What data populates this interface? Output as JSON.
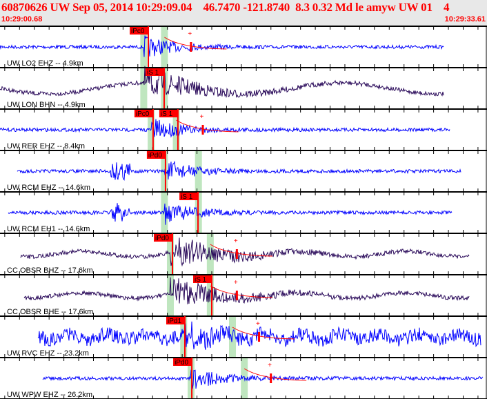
{
  "header": {
    "title": "60870626 UW Sep 05, 2014 10:29:09.04    46.7470 -121.8740  8.3 0.32 Md le amyw UW 01    4",
    "start_time": "10:29:00.68",
    "end_time": "10:29:33.61"
  },
  "colors": {
    "header_text": "#ff0000",
    "pick": "#ff0000",
    "window": "#bfe6bf",
    "short_period": "#0000ff",
    "broadband": "#2a0a5a"
  },
  "channels": [
    {
      "label": "UW LO2 EHZ -- 4.9km",
      "type": "short_period",
      "picks": [
        {
          "label": "iPc0",
          "pick_sec": 10.71
        }
      ],
      "windows_sec": [
        10.4,
        11.8
      ]
    },
    {
      "label": "UW LON BHN -- 4.9km",
      "type": "broadband",
      "picks": [
        {
          "label": "iS 1",
          "pick_sec": 11.78
        }
      ],
      "windows_sec": [
        10.4,
        11.8
      ]
    },
    {
      "label": "UW RER EHZ -- 8.4km",
      "type": "short_period",
      "picks": [
        {
          "label": "iPc0",
          "pick_sec": 11.03
        },
        {
          "label": "iS 1",
          "pick_sec": 12.71
        }
      ],
      "windows_sec": [
        10.9,
        12.6
      ]
    },
    {
      "label": "UW RCM EHZ -- 14.6km",
      "type": "short_period",
      "picks": [
        {
          "label": "iPd0",
          "pick_sec": 11.87
        }
      ],
      "windows_sec": [
        11.8,
        14.1
      ]
    },
    {
      "label": "UW RCM EH1 -- 14.6km",
      "type": "short_period",
      "picks": [
        {
          "label": "iS 1",
          "pick_sec": 14.07
        }
      ],
      "windows_sec": [
        11.8,
        14.1
      ]
    },
    {
      "label": "CC OBSR BHZ -- 17.6km",
      "type": "broadband",
      "picks": [
        {
          "label": "iPd0",
          "pick_sec": 12.34
        }
      ],
      "windows_sec": [
        12.2,
        14.9
      ]
    },
    {
      "label": "CC OBSR BHE -- 17.6km",
      "type": "broadband",
      "picks": [
        {
          "label": "iS 1",
          "pick_sec": 15.0
        }
      ],
      "windows_sec": [
        12.2,
        14.9
      ]
    },
    {
      "label": "UW RVC EHZ -- 23.2km",
      "type": "short_period",
      "picks": [
        {
          "label": "iPd1",
          "pick_sec": 13.18
        }
      ],
      "windows_sec": [
        13.1,
        16.4
      ]
    },
    {
      "label": "UW WPW EHZ -- 26.2km",
      "type": "short_period",
      "picks": [
        {
          "label": "iPd0",
          "pick_sec": 13.65
        }
      ],
      "windows_sec": [
        13.6,
        17.2
      ]
    }
  ]
}
